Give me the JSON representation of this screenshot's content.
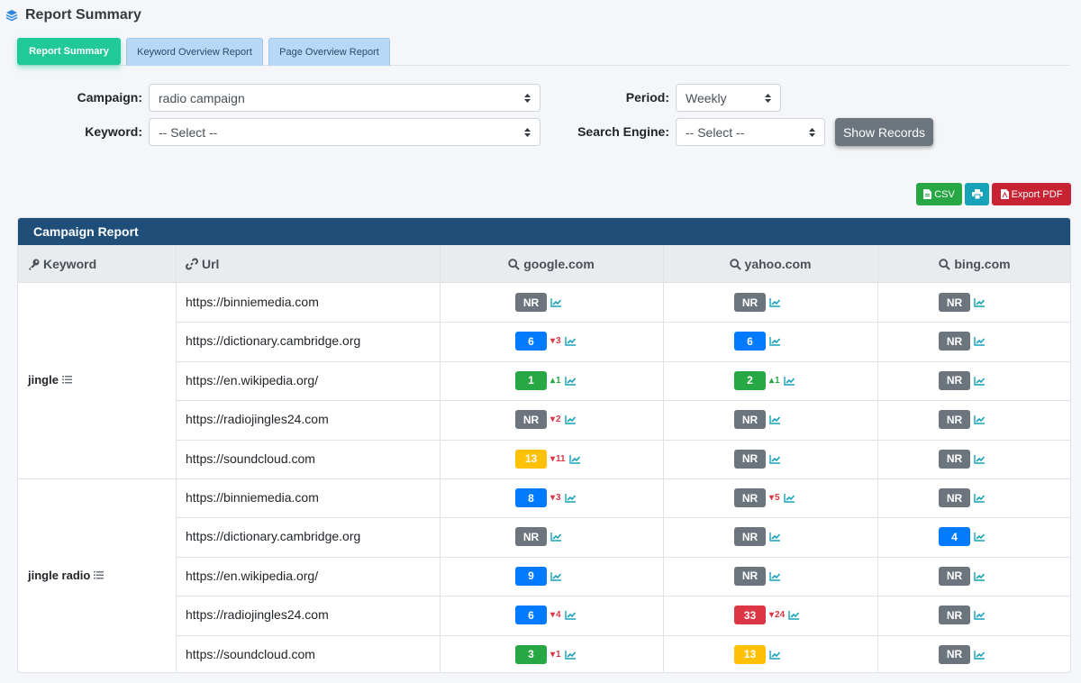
{
  "header": {
    "title": "Report Summary"
  },
  "tabs": [
    "Report Summary",
    "Keyword Overview Report",
    "Page Overview Report"
  ],
  "filters": {
    "campaign_label": "Campaign:",
    "campaign_value": "radio campaign",
    "period_label": "Period:",
    "period_value": "Weekly",
    "keyword_label": "Keyword:",
    "keyword_value": "-- Select --",
    "engine_label": "Search Engine:",
    "engine_value": "-- Select --",
    "show_button": "Show Records"
  },
  "export": {
    "csv": "CSV",
    "pdf": "Export PDF"
  },
  "report": {
    "title": "Campaign Report",
    "columns": [
      "Keyword",
      "Url",
      "google.com",
      "yahoo.com",
      "bing.com"
    ],
    "groups": [
      {
        "keyword": "jingle",
        "rows": [
          {
            "url": "https://binniemedia.com",
            "google": {
              "rank": "NR",
              "color": "nr"
            },
            "yahoo": {
              "rank": "NR",
              "color": "nr"
            },
            "bing": {
              "rank": "NR",
              "color": "nr"
            }
          },
          {
            "url": "https://dictionary.cambridge.org",
            "google": {
              "rank": "6",
              "color": "blue",
              "dir": "down",
              "chg": "3"
            },
            "yahoo": {
              "rank": "6",
              "color": "blue"
            },
            "bing": {
              "rank": "NR",
              "color": "nr"
            }
          },
          {
            "url": "https://en.wikipedia.org/",
            "google": {
              "rank": "1",
              "color": "green",
              "dir": "up",
              "chg": "1"
            },
            "yahoo": {
              "rank": "2",
              "color": "green",
              "dir": "up",
              "chg": "1"
            },
            "bing": {
              "rank": "NR",
              "color": "nr"
            }
          },
          {
            "url": "https://radiojingles24.com",
            "google": {
              "rank": "NR",
              "color": "nr",
              "dir": "down",
              "chg": "2"
            },
            "yahoo": {
              "rank": "NR",
              "color": "nr"
            },
            "bing": {
              "rank": "NR",
              "color": "nr"
            }
          },
          {
            "url": "https://soundcloud.com",
            "google": {
              "rank": "13",
              "color": "yellow",
              "dir": "down",
              "chg": "11"
            },
            "yahoo": {
              "rank": "NR",
              "color": "nr"
            },
            "bing": {
              "rank": "NR",
              "color": "nr"
            }
          }
        ]
      },
      {
        "keyword": "jingle radio",
        "rows": [
          {
            "url": "https://binniemedia.com",
            "google": {
              "rank": "8",
              "color": "blue",
              "dir": "down",
              "chg": "3"
            },
            "yahoo": {
              "rank": "NR",
              "color": "nr",
              "dir": "down",
              "chg": "5"
            },
            "bing": {
              "rank": "NR",
              "color": "nr"
            }
          },
          {
            "url": "https://dictionary.cambridge.org",
            "google": {
              "rank": "NR",
              "color": "nr"
            },
            "yahoo": {
              "rank": "NR",
              "color": "nr"
            },
            "bing": {
              "rank": "4",
              "color": "blue"
            }
          },
          {
            "url": "https://en.wikipedia.org/",
            "google": {
              "rank": "9",
              "color": "blue"
            },
            "yahoo": {
              "rank": "NR",
              "color": "nr"
            },
            "bing": {
              "rank": "NR",
              "color": "nr"
            }
          },
          {
            "url": "https://radiojingles24.com",
            "google": {
              "rank": "6",
              "color": "blue",
              "dir": "down",
              "chg": "4"
            },
            "yahoo": {
              "rank": "33",
              "color": "red",
              "dir": "down",
              "chg": "24"
            },
            "bing": {
              "rank": "NR",
              "color": "nr"
            }
          },
          {
            "url": "https://soundcloud.com",
            "google": {
              "rank": "3",
              "color": "green",
              "dir": "down",
              "chg": "1"
            },
            "yahoo": {
              "rank": "13",
              "color": "yellow"
            },
            "bing": {
              "rank": "NR",
              "color": "nr"
            }
          }
        ]
      }
    ]
  },
  "colors": {
    "accent": "#20c997",
    "header": "#1f4e79",
    "nr": "#6c757d",
    "blue": "#007bff",
    "green": "#28a745",
    "yellow": "#ffc107",
    "red": "#dc3545"
  }
}
